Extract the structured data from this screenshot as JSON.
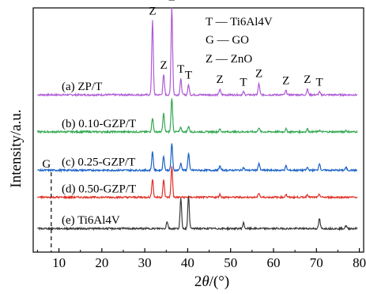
{
  "chart_data": {
    "type": "line",
    "xlabel_parts": {
      "symbol": "2",
      "italic": "θ",
      "unit": "/(°)"
    },
    "ylabel": "Intensity/a.u.",
    "xlim": [
      4,
      81
    ],
    "xticks": [
      "10",
      "20",
      "30",
      "40",
      "50",
      "60",
      "70",
      "80"
    ],
    "xtick_values": [
      10,
      20,
      30,
      40,
      50,
      60,
      70,
      80
    ],
    "grid": false,
    "legend": [
      {
        "key": "T",
        "text": "T — Ti6Al4V"
      },
      {
        "key": "G",
        "text": "G — GO"
      },
      {
        "key": "Z",
        "text": "Z — ZnO"
      }
    ],
    "legend_position": "top-right",
    "annotations": [
      {
        "text": "Z",
        "x": 31.8
      },
      {
        "text": "Z",
        "x": 34.4
      },
      {
        "text": "Z",
        "x": 36.3
      },
      {
        "text": "T",
        "x": 38.4
      },
      {
        "text": "T",
        "x": 40.2
      },
      {
        "text": "Z",
        "x": 47.5
      },
      {
        "text": "T",
        "x": 53.0
      },
      {
        "text": "Z",
        "x": 56.6
      },
      {
        "text": "Z",
        "x": 62.9
      },
      {
        "text": "Z",
        "x": 67.9
      },
      {
        "text": "T",
        "x": 70.7
      }
    ],
    "go_marker": {
      "text": "G",
      "x": 8.2
    },
    "series": [
      {
        "name": "(a) ZP/T",
        "color": "#b05bd6",
        "baseline": 1.0,
        "peaks": [
          [
            31.8,
            0.52
          ],
          [
            34.4,
            0.14
          ],
          [
            36.3,
            0.62
          ],
          [
            38.4,
            0.11
          ],
          [
            40.2,
            0.07
          ],
          [
            47.5,
            0.04
          ],
          [
            53.0,
            0.02
          ],
          [
            56.6,
            0.08
          ],
          [
            62.9,
            0.03
          ],
          [
            67.9,
            0.04
          ],
          [
            70.7,
            0.02
          ]
        ]
      },
      {
        "name": "(b) 0.10-GZP/T",
        "color": "#33a852",
        "baseline": 0.74,
        "peaks": [
          [
            31.8,
            0.1
          ],
          [
            34.4,
            0.13
          ],
          [
            36.3,
            0.24
          ],
          [
            38.4,
            0.03
          ],
          [
            40.2,
            0.04
          ],
          [
            47.5,
            0.02
          ],
          [
            56.6,
            0.03
          ],
          [
            62.9,
            0.02
          ],
          [
            67.9,
            0.02
          ],
          [
            70.7,
            0.01
          ],
          [
            76.9,
            0.01
          ]
        ]
      },
      {
        "name": "(c) 0.25-GZP/T",
        "color": "#1a63c7",
        "baseline": 0.47,
        "peaks": [
          [
            31.8,
            0.13
          ],
          [
            34.4,
            0.1
          ],
          [
            36.3,
            0.19
          ],
          [
            38.4,
            0.05
          ],
          [
            40.2,
            0.12
          ],
          [
            47.5,
            0.03
          ],
          [
            53.0,
            0.02
          ],
          [
            56.6,
            0.05
          ],
          [
            62.9,
            0.03
          ],
          [
            67.9,
            0.02
          ],
          [
            70.7,
            0.05
          ],
          [
            76.9,
            0.02
          ]
        ]
      },
      {
        "name": "(d) 0.50-GZP/T",
        "color": "#e03127",
        "baseline": 0.28,
        "peaks": [
          [
            31.8,
            0.13
          ],
          [
            34.4,
            0.12
          ],
          [
            36.3,
            0.22
          ],
          [
            47.5,
            0.02
          ],
          [
            56.6,
            0.03
          ],
          [
            62.9,
            0.02
          ],
          [
            67.9,
            0.02
          ],
          [
            70.7,
            0.02
          ]
        ]
      },
      {
        "name": "(e) Ti6Al4V",
        "color": "#3a3a3a",
        "baseline": 0.06,
        "peaks": [
          [
            35.2,
            0.05
          ],
          [
            38.4,
            0.21
          ],
          [
            40.2,
            0.23
          ],
          [
            53.0,
            0.04
          ],
          [
            70.7,
            0.07
          ],
          [
            76.9,
            0.02
          ]
        ]
      }
    ]
  }
}
